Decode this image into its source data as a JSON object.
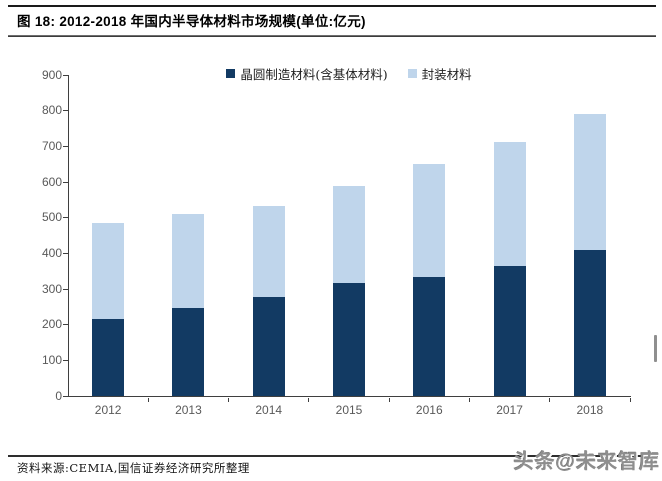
{
  "header": {
    "title": "图 18:  2012-2018 年国内半导体材料市场规模(单位:亿元)"
  },
  "chart_data": {
    "type": "bar",
    "stacked": true,
    "title": "2012-2018 年国内半导体材料市场规模",
    "unit": "亿元",
    "categories": [
      "2012",
      "2013",
      "2014",
      "2015",
      "2016",
      "2017",
      "2018"
    ],
    "series": [
      {
        "name": "晶圆制造材料(含基体材料)",
        "color": "#123a63",
        "values": [
          217,
          247,
          277,
          318,
          333,
          365,
          410
        ]
      },
      {
        "name": "封装材料",
        "color": "#bfd5eb",
        "values": [
          268,
          263,
          256,
          272,
          317,
          347,
          380
        ]
      }
    ],
    "totals": [
      485,
      510,
      533,
      590,
      650,
      712,
      790
    ],
    "ylim": [
      0,
      900
    ],
    "ytick_step": 100,
    "yticks": [
      0,
      100,
      200,
      300,
      400,
      500,
      600,
      700,
      800,
      900
    ],
    "xlabel": "",
    "ylabel": "",
    "grid": false,
    "legend_position": "top-center"
  },
  "footer": {
    "source": "资料来源:CEMIA,国信证券经济研究所整理",
    "watermark": "头条@未来智库"
  },
  "colors": {
    "axis": "#3f3f3f",
    "tick_label": "#595959",
    "series_dark": "#123a63",
    "series_light": "#bfd5eb"
  }
}
